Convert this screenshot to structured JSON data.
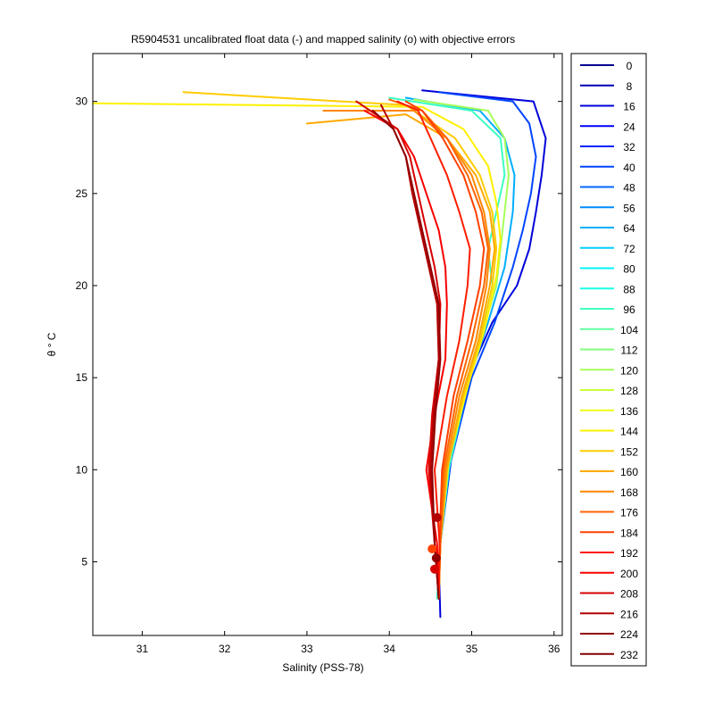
{
  "chart_data": {
    "type": "line",
    "title": "R5904531 uncalibrated float data (-) and mapped salinity (o) with objective errors",
    "xlabel": "Salinity (PSS-78)",
    "ylabel": "θ ° C",
    "xlim": [
      30.4,
      36.1
    ],
    "ylim": [
      1.0,
      32.6
    ],
    "xticks": [
      31,
      32,
      33,
      34,
      35,
      36
    ],
    "yticks": [
      5,
      10,
      15,
      20,
      25,
      30
    ],
    "grid": false,
    "legend_position": "outside-right",
    "legend_entries": [
      "0",
      "8",
      "16",
      "24",
      "32",
      "40",
      "48",
      "56",
      "64",
      "72",
      "80",
      "88",
      "96",
      "104",
      "112",
      "120",
      "128",
      "136",
      "144",
      "152",
      "160",
      "168",
      "176",
      "184",
      "192",
      "200",
      "208",
      "216",
      "224",
      "232"
    ],
    "legend_colors": [
      "#00008f",
      "#0000b4",
      "#0000d9",
      "#0000fd",
      "#0022ff",
      "#0045ff",
      "#0068ff",
      "#008bff",
      "#00aeff",
      "#00d0ff",
      "#00f4ff",
      "#1affe5",
      "#3dffc2",
      "#60ff9f",
      "#83ff7c",
      "#a6ff59",
      "#c9ff36",
      "#ecff13",
      "#fff000",
      "#ffcc00",
      "#ffa900",
      "#ff8600",
      "#ff6300",
      "#ff4000",
      "#ff1d00",
      "#f90000",
      "#d60000",
      "#b30000",
      "#900000",
      "#800000"
    ],
    "series": [
      {
        "color": "#0000d9",
        "x": [
          34.62,
          34.6,
          34.7,
          34.95,
          35.25,
          35.55,
          35.7,
          35.78,
          35.85,
          35.9,
          35.75,
          34.4
        ],
        "y": [
          2.0,
          5.0,
          10.0,
          15.0,
          18.0,
          20.0,
          22.0,
          24.0,
          26.0,
          28.0,
          30.0,
          30.6
        ]
      },
      {
        "color": "#0045ff",
        "x": [
          34.6,
          34.62,
          34.75,
          35.0,
          35.28,
          35.5,
          35.62,
          35.72,
          35.78,
          35.7,
          35.5,
          34.6
        ],
        "y": [
          3.0,
          6.0,
          10.5,
          15.0,
          18.0,
          21.0,
          23.0,
          25.0,
          27.0,
          28.8,
          30.0,
          30.5
        ]
      },
      {
        "color": "#00aeff",
        "x": [
          34.6,
          34.62,
          34.75,
          34.98,
          35.2,
          35.4,
          35.45,
          35.5,
          35.52,
          35.4,
          35.1,
          34.2
        ],
        "y": [
          3.0,
          6.0,
          11.0,
          15.0,
          18.0,
          21.0,
          22.5,
          24.0,
          26.0,
          28.0,
          29.5,
          30.2
        ]
      },
      {
        "color": "#3dffc2",
        "x": [
          34.58,
          34.62,
          34.72,
          34.92,
          35.1,
          35.25,
          35.2,
          35.3,
          35.4,
          35.35,
          35.0,
          34.0
        ],
        "y": [
          3.0,
          6.0,
          10.0,
          14.0,
          17.0,
          20.0,
          22.0,
          24.0,
          26.0,
          28.0,
          29.5,
          30.2
        ]
      },
      {
        "color": "#a6ff59",
        "x": [
          34.6,
          34.62,
          34.7,
          34.9,
          35.1,
          35.3,
          35.35,
          35.4,
          35.45,
          35.4,
          35.2,
          34.3
        ],
        "y": [
          3.0,
          6.0,
          10.0,
          14.0,
          17.0,
          20.0,
          22.0,
          24.0,
          26.0,
          28.0,
          29.5,
          30.1
        ]
      },
      {
        "color": "#fff000",
        "x": [
          34.6,
          34.62,
          34.72,
          34.95,
          35.15,
          35.3,
          35.35,
          35.3,
          35.2,
          34.9,
          34.4,
          30.4
        ],
        "y": [
          3.0,
          6.0,
          10.5,
          14.5,
          17.5,
          20.5,
          22.5,
          24.5,
          26.5,
          28.5,
          29.7,
          29.9
        ]
      },
      {
        "color": "#ffcc00",
        "x": [
          34.6,
          34.62,
          34.7,
          34.9,
          35.1,
          35.25,
          35.3,
          35.25,
          35.1,
          34.8,
          34.2,
          31.5
        ],
        "y": [
          3.0,
          6.0,
          10.0,
          14.0,
          17.0,
          20.0,
          22.0,
          24.0,
          26.0,
          28.0,
          29.8,
          30.5
        ]
      },
      {
        "color": "#ffa900",
        "x": [
          34.6,
          34.62,
          34.7,
          34.88,
          35.08,
          35.22,
          35.28,
          35.22,
          35.05,
          34.7,
          34.2,
          33.0
        ],
        "y": [
          3.0,
          6.0,
          10.0,
          14.0,
          17.0,
          20.0,
          22.0,
          24.0,
          26.0,
          28.0,
          29.3,
          28.8
        ]
      },
      {
        "color": "#ff8600",
        "x": [
          34.6,
          34.62,
          34.68,
          34.85,
          35.05,
          35.18,
          35.22,
          35.15,
          35.0,
          34.7,
          34.3,
          33.2
        ],
        "y": [
          3.0,
          6.0,
          10.0,
          14.0,
          17.0,
          20.0,
          22.0,
          24.0,
          26.0,
          28.0,
          29.5,
          29.5
        ]
      },
      {
        "color": "#ff6300",
        "x": [
          34.6,
          34.62,
          34.66,
          34.82,
          35.0,
          35.15,
          35.2,
          35.12,
          34.95,
          34.7,
          34.4,
          34.0
        ],
        "y": [
          3.0,
          6.0,
          10.0,
          14.0,
          17.0,
          20.0,
          22.0,
          24.0,
          26.0,
          28.0,
          29.5,
          30.1
        ]
      },
      {
        "color": "#ff4000",
        "x": [
          34.6,
          34.61,
          34.64,
          34.78,
          34.95,
          35.1,
          35.15,
          35.05,
          34.9,
          34.65,
          34.4,
          34.2
        ],
        "y": [
          3.0,
          6.0,
          10.0,
          14.0,
          17.0,
          20.0,
          22.0,
          24.0,
          26.0,
          28.0,
          29.5,
          30.0
        ]
      },
      {
        "color": "#ff1d00",
        "x": [
          34.6,
          34.61,
          34.55,
          34.7,
          34.85,
          34.95,
          34.98,
          34.85,
          34.7,
          34.5,
          34.35,
          34.1
        ],
        "y": [
          3.0,
          6.0,
          10.0,
          14.0,
          17.0,
          20.0,
          22.0,
          24.0,
          26.0,
          28.0,
          29.5,
          30.0
        ]
      },
      {
        "color": "#f90000",
        "x": [
          34.6,
          34.58,
          34.45,
          34.55,
          34.68,
          34.7,
          34.68,
          34.6,
          34.45,
          34.3,
          34.1,
          33.7
        ],
        "y": [
          3.0,
          6.0,
          10.0,
          13.0,
          16.0,
          19.0,
          21.0,
          23.0,
          25.0,
          27.0,
          28.5,
          29.5
        ]
      },
      {
        "color": "#d60000",
        "x": [
          34.6,
          34.55,
          34.48,
          34.52,
          34.6,
          34.62,
          34.55,
          34.45,
          34.35,
          34.25,
          34.1,
          33.6
        ],
        "y": [
          3.0,
          6.0,
          10.0,
          13.0,
          16.0,
          19.0,
          21.0,
          23.0,
          25.0,
          27.0,
          28.5,
          30.0
        ]
      },
      {
        "color": "#b30000",
        "x": [
          34.6,
          34.55,
          34.5,
          34.54,
          34.6,
          34.58,
          34.48,
          34.38,
          34.28,
          34.2,
          34.05,
          33.9
        ],
        "y": [
          3.0,
          6.0,
          10.0,
          13.0,
          16.0,
          19.0,
          21.0,
          23.0,
          25.0,
          27.0,
          28.5,
          29.8
        ]
      },
      {
        "color": "#900000",
        "x": [
          34.6,
          34.55,
          34.52,
          34.56,
          34.62,
          34.6,
          34.5,
          34.4,
          34.3,
          34.2,
          34.05,
          33.8
        ],
        "y": [
          3.0,
          6.0,
          10.0,
          13.0,
          16.0,
          19.0,
          21.0,
          23.0,
          25.0,
          27.0,
          28.5,
          29.5
        ]
      }
    ],
    "mapped_points": [
      {
        "color": "#ff4000",
        "x": 34.52,
        "y": 5.7
      },
      {
        "color": "#d60000",
        "x": 34.55,
        "y": 4.6
      },
      {
        "color": "#b30000",
        "x": 34.58,
        "y": 7.4
      },
      {
        "color": "#900000",
        "x": 34.57,
        "y": 5.2
      }
    ]
  }
}
